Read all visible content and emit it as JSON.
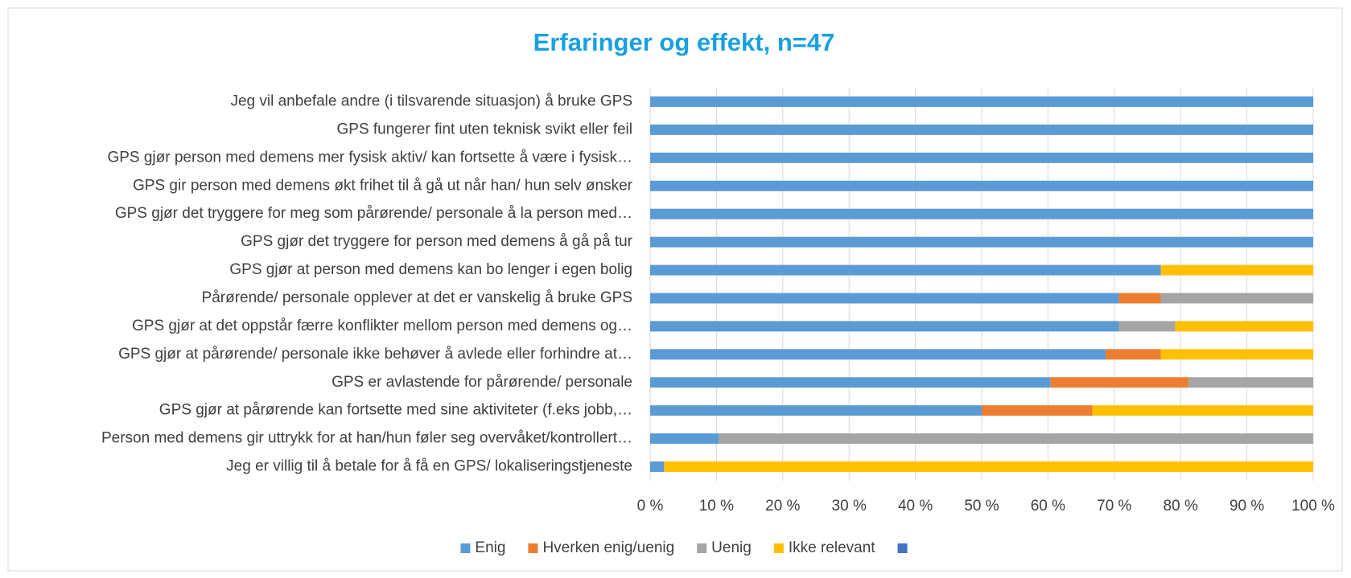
{
  "chart_data": {
    "type": "stacked_bar_horizontal",
    "title": "Erfaringer og effekt, n=47",
    "categories": [
      "Jeg vil anbefale andre (i tilsvarende situasjon) å bruke GPS",
      "GPS fungerer fint uten teknisk svikt eller feil",
      "GPS gjør person med demens mer fysisk aktiv/ kan fortsette å være i fysisk…",
      "GPS gir person med demens økt frihet til å gå ut når han/ hun selv ønsker",
      "GPS gjør det tryggere for meg som pårørende/ personale å la person med…",
      "GPS gjør det tryggere for person med demens å gå på tur",
      "GPS gjør at person med demens kan bo lenger i egen bolig",
      "Pårørende/ personale opplever at det er vanskelig å bruke GPS",
      "GPS gjør at det oppstår færre konflikter mellom person med demens og…",
      "GPS gjør at pårørende/ personale ikke behøver å avlede eller forhindre at…",
      "GPS er avlastende for pårørende/ personale",
      "GPS gjør at pårørende kan fortsette med sine aktiviteter (f.eks jobb,…",
      "Person med demens gir uttrykk for at han/hun føler seg overvåket/kontrollert…",
      "Jeg er villig til å betale for å få en GPS/ lokaliseringstjeneste"
    ],
    "series": [
      {
        "name": "Enig",
        "color": "#5b9bd5",
        "values": [
          100,
          100,
          100,
          100,
          100,
          100,
          77,
          70.7,
          70.7,
          68.7,
          60.4,
          50,
          10.4,
          2.1
        ]
      },
      {
        "name": "Hverken enig/uenig",
        "color": "#ed7d31",
        "values": [
          0,
          0,
          0,
          0,
          0,
          0,
          0,
          6.3,
          0,
          8.3,
          20.8,
          16.7,
          0,
          0
        ]
      },
      {
        "name": "Uenig",
        "color": "#a5a5a5",
        "values": [
          0,
          0,
          0,
          0,
          0,
          0,
          0,
          23,
          8.5,
          0,
          18.8,
          0,
          89.6,
          0
        ]
      },
      {
        "name": "Ikke relevant",
        "color": "#ffc000",
        "values": [
          0,
          0,
          0,
          0,
          0,
          0,
          23,
          0,
          20.8,
          23,
          0,
          33.3,
          0,
          97.9
        ]
      },
      {
        "color": "#4472c4",
        "values": [
          0,
          0,
          0,
          0,
          0,
          0,
          0,
          0,
          0,
          0,
          0,
          0,
          0,
          0
        ]
      }
    ],
    "xlim": [
      0,
      100
    ],
    "xticks": [
      {
        "value": 0,
        "label": "0 %"
      },
      {
        "value": 10,
        "label": "10 %"
      },
      {
        "value": 20,
        "label": "20 %"
      },
      {
        "value": 30,
        "label": "30 %"
      },
      {
        "value": 40,
        "label": "40 %"
      },
      {
        "value": 50,
        "label": "50 %"
      },
      {
        "value": 60,
        "label": "60 %"
      },
      {
        "value": 70,
        "label": "70 %"
      },
      {
        "value": 80,
        "label": "80 %"
      },
      {
        "value": 90,
        "label": "90 %"
      },
      {
        "value": 100,
        "label": "100 %"
      }
    ],
    "grid": true,
    "legend": "bottom"
  }
}
